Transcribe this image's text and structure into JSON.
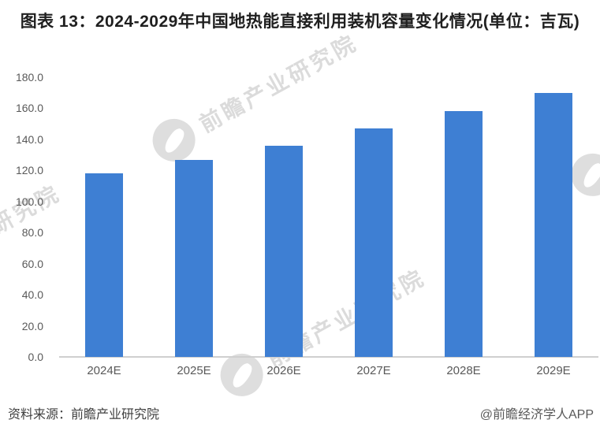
{
  "title": "图表 13：2024-2029年中国地热能直接利用装机容量变化情况(单位：吉瓦)",
  "chart_data": {
    "type": "bar",
    "title": "2024-2029年中国地热能直接利用装机容量变化情况",
    "unit": "吉瓦",
    "categories": [
      "2024E",
      "2025E",
      "2026E",
      "2027E",
      "2028E",
      "2029E"
    ],
    "values": [
      118,
      127,
      136,
      147,
      158,
      170
    ],
    "xlabel": "",
    "ylabel": "",
    "ylim": [
      0,
      180
    ],
    "ytick_interval": 20,
    "ytick_label_format": "one-decimal",
    "grid": false,
    "legend": null,
    "bar_color": "#3E7FD3"
  },
  "watermark": {
    "text": "前瞻产业研究院"
  },
  "footer": {
    "source": "资料来源：前瞻产业研究院",
    "credit": "@前瞻经济学人APP"
  }
}
